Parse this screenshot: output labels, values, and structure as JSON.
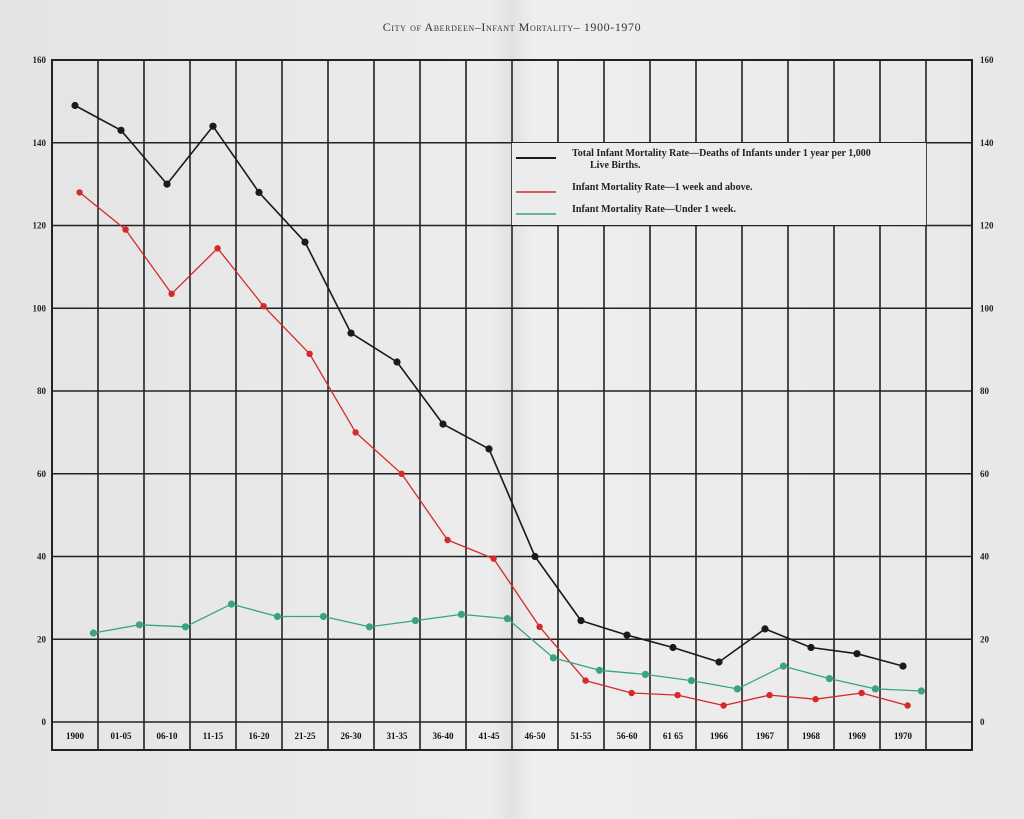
{
  "chart_data": {
    "type": "line",
    "title": "City of Aberdeen–Infant Mortality– 1900-1970",
    "categories": [
      "1900",
      "01-05",
      "06-10",
      "11-15",
      "16-20",
      "21-25",
      "26-30",
      "31-35",
      "36-40",
      "41-45",
      "46-50",
      "51-55",
      "56-60",
      "61 65",
      "1966",
      "1967",
      "1968",
      "1969",
      "1970"
    ],
    "y_ticks": [
      "0",
      "20",
      "40",
      "60",
      "80",
      "100",
      "120",
      "140",
      "160"
    ],
    "ylim": [
      0,
      160
    ],
    "grid": true,
    "legend_position": "top-right",
    "series": [
      {
        "name": "Total Infant Mortality Rate—Deaths of Infants under 1 year per 1,000 Live Births.",
        "color": "#1a1a1a",
        "x": [
          0.5,
          1.5,
          2.5,
          3.5,
          4.5,
          5.5,
          6.5,
          7.5,
          8.5,
          9.5,
          10.5,
          11.5,
          12.5,
          13.5,
          14.5,
          15.5,
          16.5,
          17.5,
          18.5
        ],
        "values": [
          149,
          143,
          130,
          144,
          128,
          116,
          94,
          87,
          72,
          66,
          40,
          24.5,
          21,
          18,
          14.5,
          22.5,
          18,
          16.5,
          13.5
        ]
      },
      {
        "name": "Infant Mortality Rate—1 week and above.",
        "color": "#d42a2a",
        "x": [
          0.6,
          1.6,
          2.6,
          3.6,
          4.6,
          5.6,
          6.6,
          7.6,
          8.6,
          9.6,
          10.6,
          11.6,
          12.6,
          13.6,
          14.6,
          15.6,
          16.6,
          17.6,
          18.6
        ],
        "values": [
          128,
          119,
          103.5,
          114.5,
          100.5,
          89,
          70,
          60,
          44,
          39.5,
          23,
          10,
          7,
          6.5,
          4,
          6.5,
          5.5,
          7,
          4
        ]
      },
      {
        "name": "Infant Mortality Rate—Under 1 week.",
        "color": "#3aa57c",
        "x": [
          0.9,
          1.9,
          2.9,
          3.9,
          4.9,
          5.9,
          6.9,
          7.9,
          8.9,
          9.9,
          10.9,
          11.9,
          12.9,
          13.9,
          14.9,
          15.9,
          16.9,
          17.9,
          18.9
        ],
        "values": [
          21.5,
          23.5,
          23,
          28.5,
          25.5,
          25.5,
          23,
          24.5,
          26,
          25,
          15.5,
          12.5,
          11.5,
          10,
          8,
          13.5,
          10.5,
          8,
          7.5
        ]
      }
    ]
  }
}
